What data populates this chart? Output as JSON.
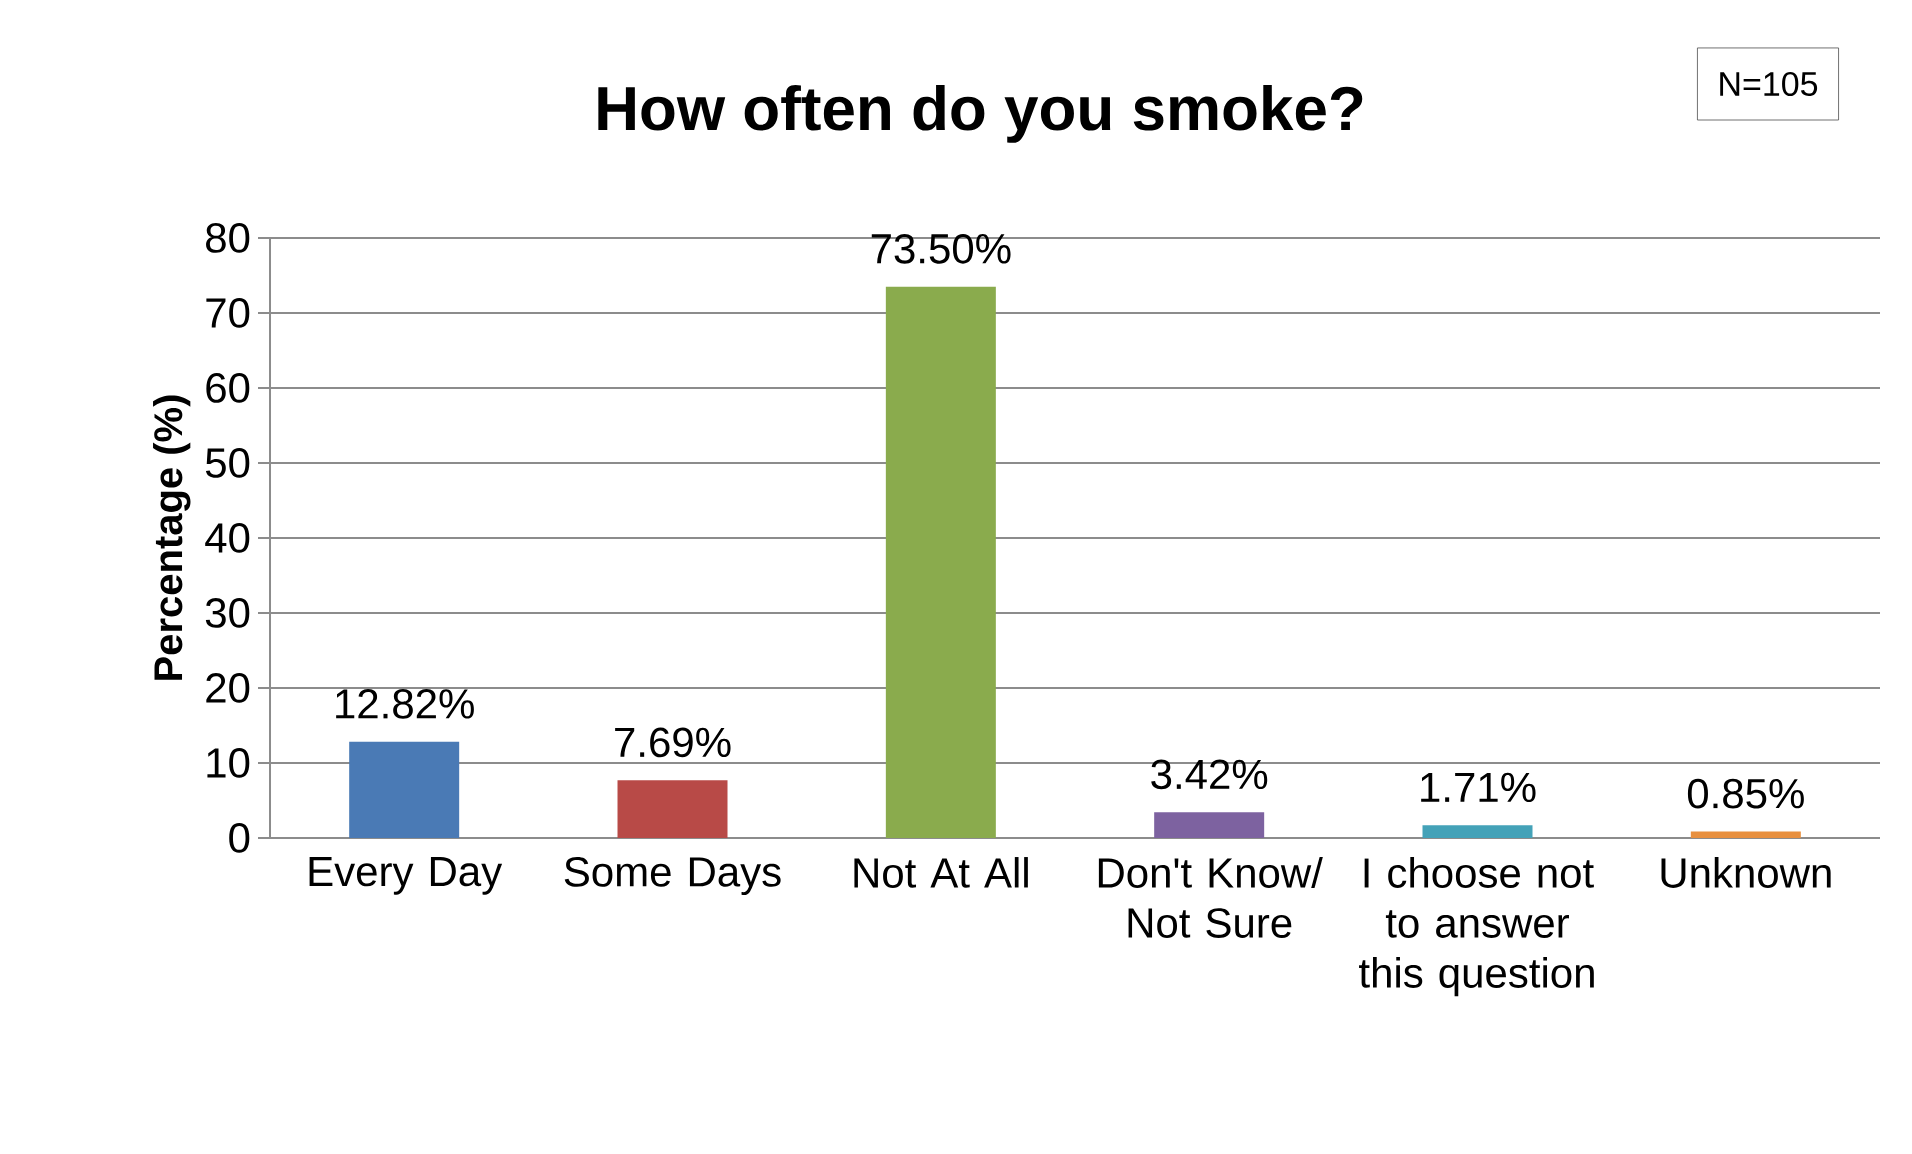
{
  "chart_data": {
    "type": "bar",
    "title": "How often do you smoke?",
    "ylabel": "Percentage (%)",
    "categories": [
      "Every Day",
      "Some Days",
      "Not At All",
      "Don't Know/ Not Sure",
      "I choose not to answer this question",
      "Unknown"
    ],
    "values": [
      12.82,
      7.69,
      73.5,
      3.42,
      1.71,
      0.85
    ],
    "colors": [
      "#4a7ab5",
      "#b84a47",
      "#8aab4d",
      "#7d62a0",
      "#44a2b8",
      "#e8903f"
    ],
    "value_labels": [
      "12.82%",
      "7.69%",
      "73.50%",
      "3.42%",
      "1.71%",
      "0.85%"
    ],
    "ylim": [
      0,
      80
    ],
    "yticks": [
      0,
      10,
      20,
      30,
      40,
      50,
      60,
      70,
      80
    ],
    "grid": "y",
    "annotations": [
      "N=105"
    ]
  }
}
